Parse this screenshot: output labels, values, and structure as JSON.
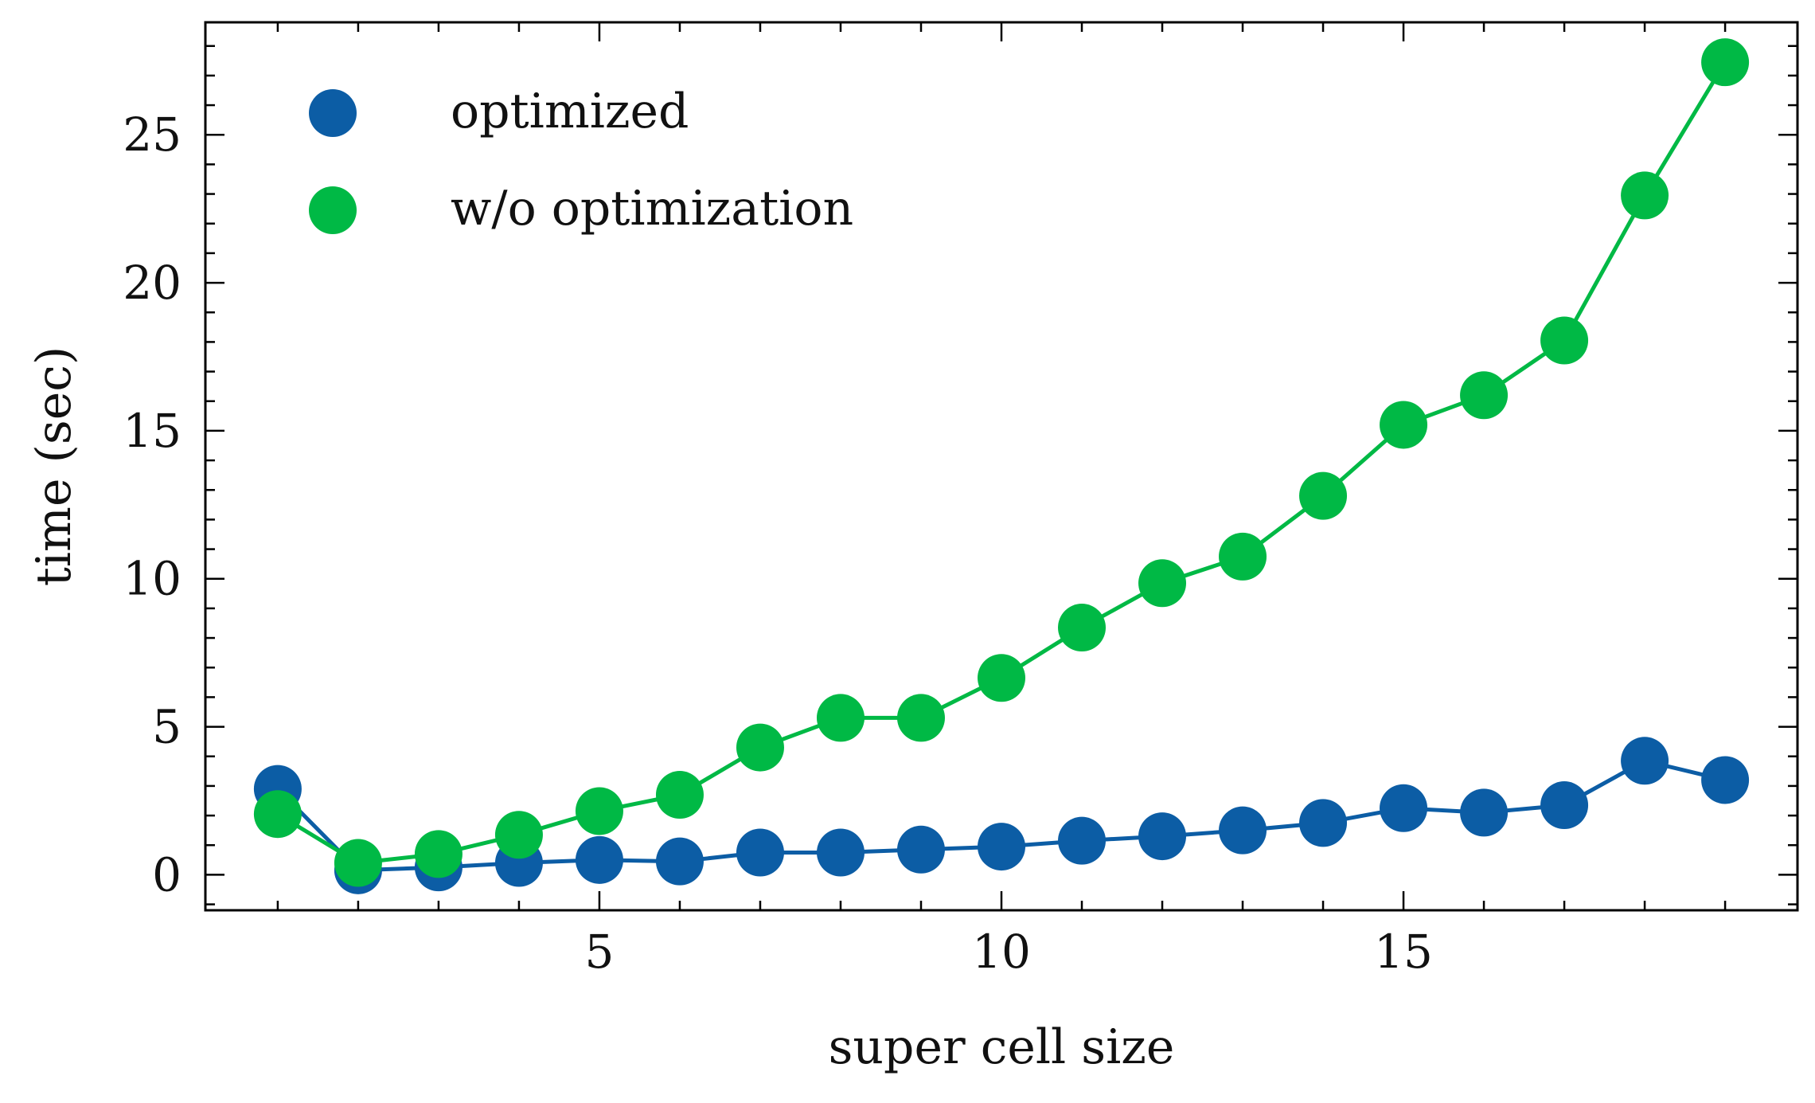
{
  "chart_data": {
    "type": "line",
    "title": "",
    "xlabel": "super cell size",
    "ylabel": "time (sec)",
    "xlim": [
      0.1,
      19.9
    ],
    "ylim": [
      -1.2,
      28.8
    ],
    "xticks": [
      5,
      10,
      15
    ],
    "yticks": [
      0,
      5,
      10,
      15,
      20,
      25
    ],
    "legend_position": "top-left",
    "series": [
      {
        "name": "optimized",
        "color": "#0C5DA5",
        "x": [
          1,
          2,
          3,
          4,
          5,
          6,
          7,
          8,
          9,
          10,
          11,
          12,
          13,
          14,
          15,
          16,
          17,
          18,
          19
        ],
        "y": [
          2.9,
          0.15,
          0.25,
          0.4,
          0.5,
          0.45,
          0.75,
          0.75,
          0.85,
          0.95,
          1.15,
          1.3,
          1.5,
          1.75,
          2.25,
          2.1,
          2.35,
          3.85,
          3.2
        ]
      },
      {
        "name": "w/o optimization",
        "color": "#00B945",
        "x": [
          1,
          2,
          3,
          4,
          5,
          6,
          7,
          8,
          9,
          10,
          11,
          12,
          13,
          14,
          15,
          16,
          17,
          18,
          19
        ],
        "y": [
          2.05,
          0.4,
          0.7,
          1.35,
          2.15,
          2.7,
          4.3,
          5.3,
          5.3,
          6.65,
          8.35,
          9.85,
          10.75,
          12.8,
          15.2,
          16.2,
          18.05,
          22.95,
          27.45
        ]
      }
    ]
  }
}
